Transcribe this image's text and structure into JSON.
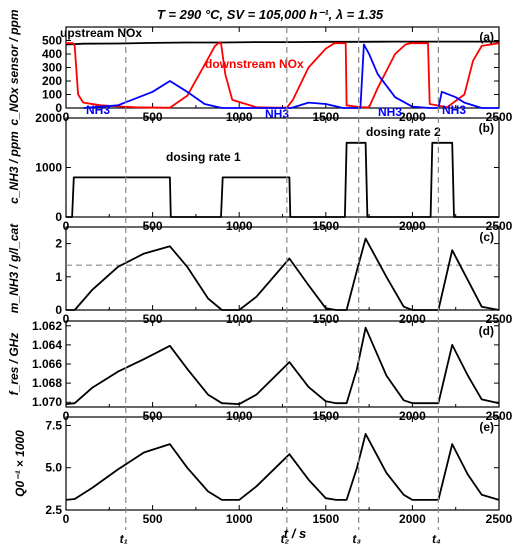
{
  "figure": {
    "header": "T = 290 °C, SV = 105,000 h⁻¹, λ = 1.35",
    "xlabel": "t / s",
    "time_markers": [
      {
        "label": "t₁",
        "t": 345
      },
      {
        "label": "t₂",
        "t": 1275
      },
      {
        "label": "t₃",
        "t": 1690
      },
      {
        "label": "t₄",
        "t": 2150
      }
    ]
  },
  "chart_data": [
    {
      "type": "line",
      "panel": "(a)",
      "ylabel": "c_NOx sensor / ppm",
      "xlim": [
        0,
        2500
      ],
      "xticks": [
        0,
        500,
        1000,
        1500,
        2000,
        2500
      ],
      "ylim": [
        0,
        600
      ],
      "yticks": [
        0,
        100,
        200,
        300,
        400,
        500
      ],
      "annotations": [
        "upstream NOx",
        "downstream NOx",
        "NH3",
        "NH3",
        "NH3",
        "NH3"
      ],
      "series": [
        {
          "name": "upstream NOx",
          "color": "#000000",
          "x": [
            0,
            100,
            300,
            500,
            700,
            900,
            1100,
            1300,
            1500,
            1700,
            1900,
            2100,
            2300,
            2500
          ],
          "y": [
            470,
            476,
            478,
            482,
            485,
            485,
            488,
            488,
            490,
            490,
            492,
            492,
            492,
            492
          ]
        },
        {
          "name": "downstream NOx",
          "color": "#ff0000",
          "x": [
            0,
            40,
            50,
            70,
            100,
            200,
            400,
            560,
            600,
            700,
            800,
            860,
            880,
            890,
            895,
            920,
            960,
            1100,
            1200,
            1275,
            1310,
            1400,
            1500,
            1550,
            1580,
            1590,
            1600,
            1615,
            1620,
            1700,
            1750,
            1800,
            1900,
            1960,
            1990,
            2000,
            2070,
            2090,
            2100,
            2200,
            2300,
            2350,
            2400,
            2500
          ],
          "y": [
            480,
            480,
            460,
            100,
            40,
            20,
            5,
            2,
            2,
            90,
            320,
            460,
            480,
            480,
            480,
            250,
            60,
            5,
            2,
            2,
            60,
            300,
            440,
            480,
            480,
            480,
            480,
            480,
            20,
            5,
            5,
            150,
            400,
            470,
            480,
            480,
            480,
            480,
            30,
            5,
            100,
            350,
            460,
            480
          ]
        },
        {
          "name": "NH3",
          "color": "#0000ff",
          "x": [
            100,
            300,
            500,
            600,
            700,
            800,
            900,
            1000,
            1200,
            1300,
            1400,
            1500,
            1600,
            1700,
            1720,
            1750,
            1800,
            1900,
            2000,
            2100,
            2150,
            2170,
            2250,
            2300,
            2400,
            2500
          ],
          "y": [
            0,
            20,
            120,
            200,
            120,
            30,
            0,
            0,
            0,
            0,
            40,
            30,
            0,
            0,
            470,
            400,
            250,
            80,
            10,
            0,
            0,
            120,
            80,
            40,
            0,
            0
          ]
        }
      ]
    },
    {
      "type": "line",
      "panel": "(b)",
      "ylabel": "c_NH3 / ppm",
      "xlim": [
        0,
        2500
      ],
      "xticks": [
        0,
        500,
        1000,
        1500,
        2000,
        2500
      ],
      "ylim": [
        0,
        2000
      ],
      "yticks": [
        0,
        1000,
        2000
      ],
      "annotations": [
        "dosing rate 1",
        "dosing rate 2"
      ],
      "series": [
        {
          "name": "",
          "color": "#000000",
          "x": [
            0,
            35,
            45,
            300,
            590,
            600,
            605,
            895,
            905,
            1100,
            1290,
            1295,
            1305,
            1610,
            1620,
            1700,
            1730,
            1740,
            2105,
            2115,
            2200,
            2230,
            2240,
            2500
          ],
          "y": [
            0,
            0,
            800,
            800,
            800,
            800,
            0,
            0,
            800,
            800,
            800,
            0,
            0,
            0,
            1500,
            1500,
            1500,
            0,
            0,
            1500,
            1500,
            1500,
            0,
            0
          ]
        }
      ]
    },
    {
      "type": "line",
      "panel": "(c)",
      "ylabel": "m_NH3 / g/l_cat",
      "xlim": [
        0,
        2500
      ],
      "xticks": [
        0,
        500,
        1000,
        1500,
        2000,
        2500
      ],
      "ylim": [
        0,
        2.5
      ],
      "yticks": [
        0,
        1,
        2
      ],
      "reference_line_y": 1.35,
      "series": [
        {
          "name": "",
          "color": "#000000",
          "x": [
            0,
            50,
            150,
            300,
            450,
            600,
            700,
            820,
            900,
            1000,
            1100,
            1290,
            1400,
            1500,
            1560,
            1620,
            1680,
            1730,
            1850,
            1950,
            2000,
            2100,
            2150,
            2230,
            2320,
            2400,
            2500
          ],
          "y": [
            0,
            0,
            0.6,
            1.3,
            1.7,
            1.92,
            1.3,
            0.35,
            0,
            0,
            0.4,
            1.55,
            0.75,
            0.05,
            0,
            0,
            1.2,
            2.15,
            1.0,
            0.1,
            0,
            0,
            0,
            1.8,
            0.9,
            0.1,
            0
          ]
        }
      ]
    },
    {
      "type": "line",
      "panel": "(d)",
      "ylabel": "f_res / GHz",
      "xlim": [
        0,
        2500
      ],
      "xticks": [
        0,
        500,
        1000,
        1500,
        2000,
        2500
      ],
      "ylim": [
        1.0705,
        1.0615
      ],
      "yticks": [
        1.062,
        1.064,
        1.066,
        1.068,
        1.07
      ],
      "series": [
        {
          "name": "",
          "color": "#000000",
          "x": [
            0,
            50,
            150,
            300,
            450,
            600,
            700,
            820,
            900,
            1000,
            1100,
            1290,
            1400,
            1500,
            1560,
            1620,
            1680,
            1730,
            1850,
            1950,
            2000,
            2100,
            2150,
            2230,
            2320,
            2400,
            2500
          ],
          "y": [
            1.0702,
            1.0701,
            1.0685,
            1.0668,
            1.0655,
            1.0641,
            1.0665,
            1.0692,
            1.0701,
            1.0702,
            1.0692,
            1.0658,
            1.0684,
            1.0699,
            1.0701,
            1.0701,
            1.0665,
            1.0622,
            1.0672,
            1.0698,
            1.0701,
            1.0701,
            1.0701,
            1.064,
            1.0672,
            1.0697,
            1.0701
          ]
        }
      ]
    },
    {
      "type": "line",
      "panel": "(e)",
      "ylabel": "Q0⁻¹ × 1000",
      "xlim": [
        0,
        2500
      ],
      "xticks": [
        0,
        500,
        1000,
        1500,
        2000,
        2500
      ],
      "ylim": [
        2.5,
        8.0
      ],
      "yticks": [
        2.5,
        5.0,
        7.5
      ],
      "series": [
        {
          "name": "",
          "color": "#000000",
          "x": [
            0,
            50,
            150,
            300,
            450,
            600,
            700,
            820,
            900,
            1000,
            1100,
            1290,
            1400,
            1500,
            1560,
            1620,
            1680,
            1730,
            1850,
            1950,
            2000,
            2100,
            2150,
            2230,
            2320,
            2400,
            2500
          ],
          "y": [
            3.1,
            3.15,
            3.8,
            4.9,
            5.9,
            6.4,
            5.0,
            3.6,
            3.1,
            3.1,
            3.9,
            5.8,
            4.3,
            3.2,
            3.1,
            3.1,
            5.0,
            7.0,
            4.7,
            3.4,
            3.1,
            3.1,
            3.1,
            6.4,
            4.6,
            3.4,
            3.1
          ]
        }
      ]
    }
  ]
}
